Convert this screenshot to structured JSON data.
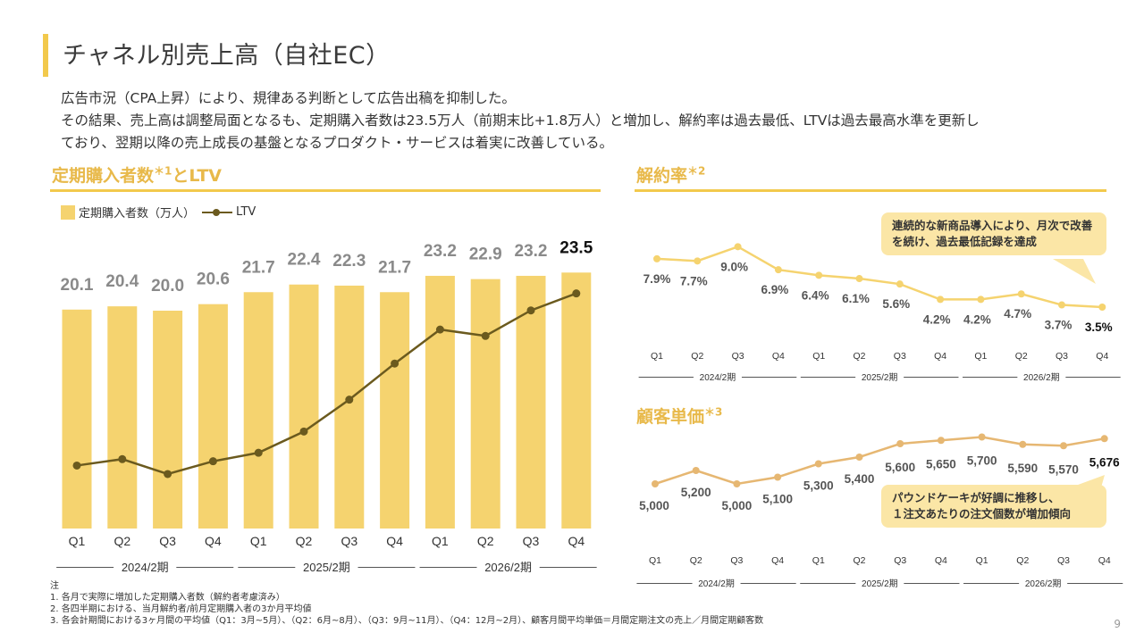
{
  "page": {
    "title": "チャネル別売上高（自社EC）",
    "intro": [
      "広告市況（CPA上昇）により、規律ある判断として広告出稿を抑制した。",
      "その結果、売上高は調整局面となるも、定期購入者数は23.5万人（前期末比+1.8万人）と増加し、解約率は過去最低、LTVは過去最高水準を更新し",
      "ており、翌期以降の売上成長の基盤となるプロダクト・サービスは着実に改善している。"
    ],
    "page_number": "9"
  },
  "sections": {
    "subscribers": {
      "title": "定期購入者数",
      "sup1": "＊1",
      "title_suffix": "とLTV"
    },
    "churn": {
      "title": "解約率",
      "sup": "＊2"
    },
    "aov": {
      "title": "顧客単価",
      "sup": "＊3"
    }
  },
  "legend": {
    "bar_label": "定期購入者数（万人）",
    "line_label": "LTV"
  },
  "callouts": {
    "churn": [
      "連続的な新商品導入により、月次で改善",
      "を続け、過去最低記録を達成"
    ],
    "aov": [
      "パウンドケーキが好調に推移し、",
      "１注文あたりの注文個数が増加傾向"
    ]
  },
  "notes": {
    "heading": "注",
    "items": [
      "1.  各月で実際に増加した定期購入者数（解約者考慮済み）",
      "2.  各四半期における、当月解約者/前月定期購入者の3か月平均値",
      "3.  各会計期間における3ヶ月間の平均値（Q1：3月~5月）、（Q2：6月~8月）、（Q3：9月~11月）、（Q4：12月~2月）、顧客月間平均単価＝月間定期注文の売上／月間定期顧客数"
    ]
  },
  "colors": {
    "accent": "#f2c94c",
    "bar": "#f5d36f",
    "ltv_line": "#6b5a1e",
    "churn_line": "#f5d36f",
    "aov_line": "#e6b772",
    "value_label": "#8a8a8a",
    "callout_bg": "#fbe6a6"
  },
  "chart_data": [
    {
      "id": "subscribers",
      "type": "bar",
      "quarters": [
        "Q1",
        "Q2",
        "Q3",
        "Q4",
        "Q1",
        "Q2",
        "Q3",
        "Q4",
        "Q1",
        "Q2",
        "Q3",
        "Q4"
      ],
      "periods": [
        "2024/2期",
        "2025/2期",
        "2026/2期"
      ],
      "series": [
        {
          "name": "定期購入者数（万人）",
          "type": "bar",
          "values": [
            20.1,
            20.4,
            20.0,
            20.6,
            21.7,
            22.4,
            22.3,
            21.7,
            23.2,
            22.9,
            23.2,
            23.5
          ],
          "labels": [
            "20.1",
            "20.4",
            "20.0",
            "20.6",
            "21.7",
            "22.4",
            "22.3",
            "21.7",
            "23.2",
            "22.9",
            "23.2",
            "23.5"
          ]
        },
        {
          "name": "LTV",
          "type": "line",
          "unit": "relative (no axis shown)",
          "values": [
            42,
            45,
            38,
            44,
            48,
            58,
            73,
            90,
            106,
            103,
            115,
            123
          ]
        }
      ],
      "ylim": [
        0,
        24
      ]
    },
    {
      "id": "churn",
      "type": "line",
      "quarters": [
        "Q1",
        "Q2",
        "Q3",
        "Q4",
        "Q1",
        "Q2",
        "Q3",
        "Q4",
        "Q1",
        "Q2",
        "Q3",
        "Q4"
      ],
      "periods": [
        "2024/2期",
        "2025/2期",
        "2026/2期"
      ],
      "values": [
        7.9,
        7.7,
        9.0,
        6.9,
        6.4,
        6.1,
        5.6,
        4.2,
        4.2,
        4.7,
        3.7,
        3.5
      ],
      "labels": [
        "7.9%",
        "7.7%",
        "9.0%",
        "6.9%",
        "6.4%",
        "6.1%",
        "5.6%",
        "4.2%",
        "4.2%",
        "4.7%",
        "3.7%",
        "3.5%"
      ],
      "ylim": [
        2.5,
        9.5
      ]
    },
    {
      "id": "aov",
      "type": "line",
      "quarters": [
        "Q1",
        "Q2",
        "Q3",
        "Q4",
        "Q1",
        "Q2",
        "Q3",
        "Q4",
        "Q1",
        "Q2",
        "Q3",
        "Q4"
      ],
      "periods": [
        "2024/2期",
        "2025/2期",
        "2026/2期"
      ],
      "values": [
        5000,
        5200,
        5000,
        5100,
        5300,
        5400,
        5600,
        5650,
        5700,
        5590,
        5570,
        5676
      ],
      "labels": [
        "5,000",
        "5,200",
        "5,000",
        "5,100",
        "5,300",
        "5,400",
        "5,600",
        "5,650",
        "5,700",
        "5,590",
        "5,570",
        "5,676"
      ],
      "ylim": [
        4600,
        5800
      ]
    }
  ]
}
